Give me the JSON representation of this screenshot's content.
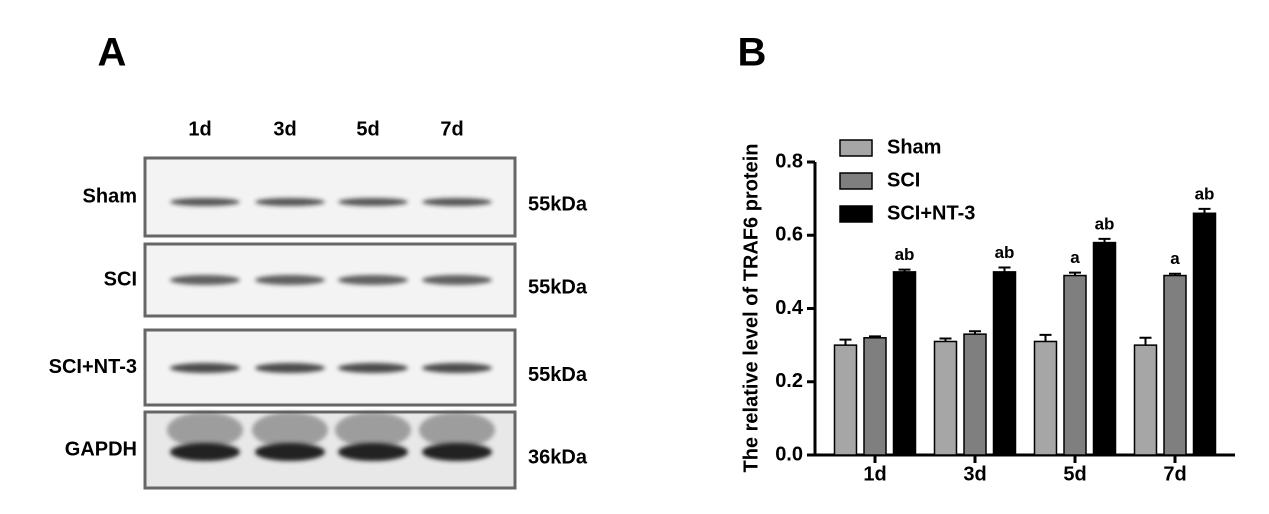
{
  "panel_a": {
    "label": "A",
    "lanes": [
      "1d",
      "3d",
      "5d",
      "7d"
    ],
    "rows": [
      {
        "name": "Sham",
        "size": "55kDa"
      },
      {
        "name": "SCI",
        "size": "55kDa"
      },
      {
        "name": "SCI+NT-3",
        "size": "55kDa"
      },
      {
        "name": "GAPDH",
        "size": "36kDa"
      }
    ]
  },
  "chart_data": {
    "type": "bar",
    "label": "B",
    "ylabel": "The relative level of TRAF6 protein",
    "categories": [
      "1d",
      "3d",
      "5d",
      "7d"
    ],
    "series": [
      {
        "name": "Sham",
        "color": "#a6a6a6",
        "values": [
          0.3,
          0.31,
          0.31,
          0.3
        ],
        "errors": [
          0.015,
          0.008,
          0.018,
          0.02
        ]
      },
      {
        "name": "SCI",
        "color": "#7f7f7f",
        "values": [
          0.32,
          0.33,
          0.49,
          0.49
        ],
        "errors": [
          0.004,
          0.008,
          0.008,
          0.005
        ],
        "annotations": [
          null,
          null,
          "a",
          "a"
        ]
      },
      {
        "name": "SCI+NT-3",
        "color": "#000000",
        "values": [
          0.5,
          0.5,
          0.58,
          0.66
        ],
        "errors": [
          0.006,
          0.012,
          0.01,
          0.012
        ],
        "annotations": [
          "ab",
          "ab",
          "ab",
          "ab"
        ]
      }
    ],
    "ylim": [
      0,
      0.8
    ],
    "yticks": [
      {
        "value": 0,
        "label": "0.0"
      },
      0.2,
      0.4,
      0.6,
      0.8
    ],
    "legend": "top-left"
  }
}
